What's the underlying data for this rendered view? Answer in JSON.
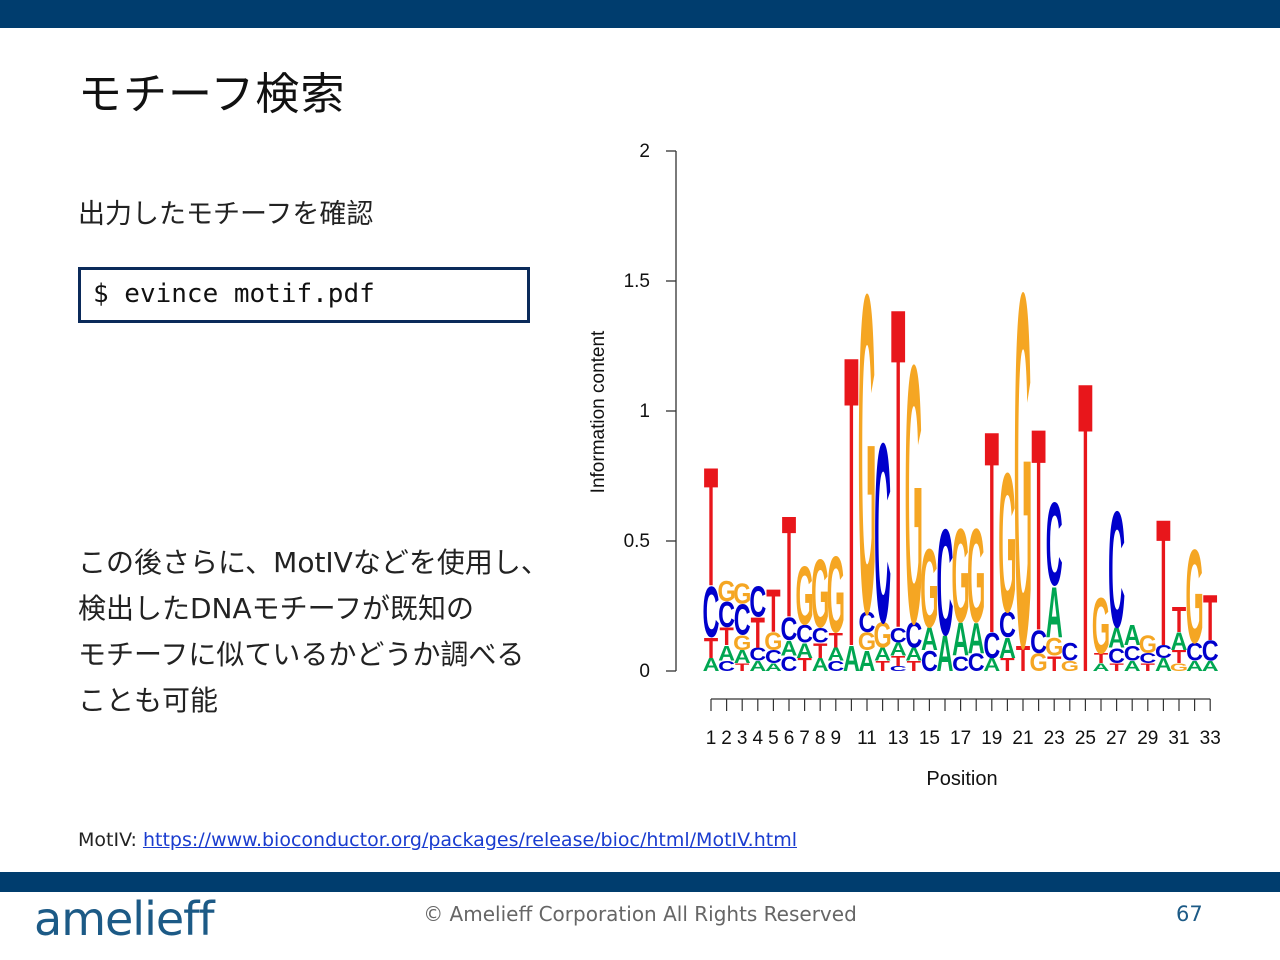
{
  "slide": {
    "title": "モチーフ検索",
    "subtitle": "出力したモチーフを確認",
    "command": "$ evince motif.pdf",
    "paragraph": [
      "この後さらに、MotIVなどを使用し、",
      "検出したDNAモチーフが既知の",
      "モチーフに似ているかどうか調べる",
      "ことも可能"
    ],
    "reference_label": "MotIV: ",
    "reference_url": "https://www.bioconductor.org/packages/release/bioc/html/MotIV.html"
  },
  "footer": {
    "logo": "amelieff",
    "copyright": "© Amelieff Corporation All Rights Reserved",
    "page": "67"
  },
  "colors": {
    "bar": "#003d6e",
    "A": "#00a651",
    "C": "#0000cc",
    "G": "#f5a623",
    "T": "#e8161b"
  },
  "chart_data": {
    "type": "sequence-logo",
    "xlabel": "Position",
    "ylabel": "Information content",
    "ylim": [
      0,
      2
    ],
    "yticks": [
      0,
      0.5,
      1,
      1.5,
      2
    ],
    "ytick_labels": [
      "0",
      "0.5",
      "1",
      "1.5",
      "2"
    ],
    "xtick_labels": [
      "1",
      "2",
      "3",
      "4",
      "5",
      "6",
      "7",
      "8",
      "9",
      "",
      "11",
      "",
      "13",
      "",
      "15",
      "",
      "17",
      "",
      "19",
      "",
      "21",
      "",
      "23",
      "",
      "25",
      "",
      "27",
      "",
      "29",
      "",
      "31",
      "",
      "33"
    ],
    "positions": [
      {
        "pos": 1,
        "letters": [
          {
            "b": "A",
            "v": 0.05
          },
          {
            "b": "T",
            "v": 0.08
          },
          {
            "b": "C",
            "v": 0.2
          },
          {
            "b": "T",
            "v": 0.47
          }
        ]
      },
      {
        "pos": 2,
        "letters": [
          {
            "b": "C",
            "v": 0.04
          },
          {
            "b": "A",
            "v": 0.06
          },
          {
            "b": "T",
            "v": 0.07
          },
          {
            "b": "C",
            "v": 0.1
          },
          {
            "b": "G",
            "v": 0.08
          }
        ]
      },
      {
        "pos": 3,
        "letters": [
          {
            "b": "T",
            "v": 0.03
          },
          {
            "b": "A",
            "v": 0.05
          },
          {
            "b": "G",
            "v": 0.06
          },
          {
            "b": "C",
            "v": 0.12
          },
          {
            "b": "G",
            "v": 0.08
          }
        ]
      },
      {
        "pos": 4,
        "letters": [
          {
            "b": "A",
            "v": 0.04
          },
          {
            "b": "C",
            "v": 0.05
          },
          {
            "b": "T",
            "v": 0.12
          },
          {
            "b": "C",
            "v": 0.12
          }
        ]
      },
      {
        "pos": 5,
        "letters": [
          {
            "b": "A",
            "v": 0.03
          },
          {
            "b": "C",
            "v": 0.05
          },
          {
            "b": "G",
            "v": 0.07
          },
          {
            "b": "T",
            "v": 0.17
          }
        ]
      },
      {
        "pos": 6,
        "letters": [
          {
            "b": "C",
            "v": 0.06
          },
          {
            "b": "A",
            "v": 0.06
          },
          {
            "b": "C",
            "v": 0.09
          },
          {
            "b": "T",
            "v": 0.4
          }
        ]
      },
      {
        "pos": 7,
        "letters": [
          {
            "b": "T",
            "v": 0.05
          },
          {
            "b": "A",
            "v": 0.06
          },
          {
            "b": "C",
            "v": 0.07
          },
          {
            "b": "G",
            "v": 0.23
          }
        ]
      },
      {
        "pos": 8,
        "letters": [
          {
            "b": "A",
            "v": 0.05
          },
          {
            "b": "T",
            "v": 0.06
          },
          {
            "b": "C",
            "v": 0.06
          },
          {
            "b": "G",
            "v": 0.27
          }
        ]
      },
      {
        "pos": 9,
        "letters": [
          {
            "b": "C",
            "v": 0.04
          },
          {
            "b": "A",
            "v": 0.05
          },
          {
            "b": "T",
            "v": 0.06
          },
          {
            "b": "G",
            "v": 0.3
          }
        ]
      },
      {
        "pos": 10,
        "letters": [
          {
            "b": "A",
            "v": 0.1
          },
          {
            "b": "T",
            "v": 1.15
          }
        ]
      },
      {
        "pos": 11,
        "letters": [
          {
            "b": "A",
            "v": 0.08
          },
          {
            "b": "G",
            "v": 0.07
          },
          {
            "b": "C",
            "v": 0.08
          },
          {
            "b": "G",
            "v": 1.26
          }
        ]
      },
      {
        "pos": 12,
        "letters": [
          {
            "b": "T",
            "v": 0.04
          },
          {
            "b": "A",
            "v": 0.05
          },
          {
            "b": "G",
            "v": 0.1
          },
          {
            "b": "C",
            "v": 0.71
          }
        ]
      },
      {
        "pos": 13,
        "letters": [
          {
            "b": "C",
            "v": 0.02
          },
          {
            "b": "T",
            "v": 0.04
          },
          {
            "b": "A",
            "v": 0.05
          },
          {
            "b": "C",
            "v": 0.06
          },
          {
            "b": "T",
            "v": 1.27
          }
        ]
      },
      {
        "pos": 14,
        "letters": [
          {
            "b": "T",
            "v": 0.04
          },
          {
            "b": "A",
            "v": 0.05
          },
          {
            "b": "C",
            "v": 0.1
          },
          {
            "b": "G",
            "v": 1.02
          }
        ]
      },
      {
        "pos": 15,
        "letters": [
          {
            "b": "C",
            "v": 0.08
          },
          {
            "b": "A",
            "v": 0.09
          },
          {
            "b": "G",
            "v": 0.31
          }
        ]
      },
      {
        "pos": 16,
        "letters": [
          {
            "b": "A",
            "v": 0.14
          },
          {
            "b": "C",
            "v": 0.42
          }
        ]
      },
      {
        "pos": 17,
        "letters": [
          {
            "b": "C",
            "v": 0.06
          },
          {
            "b": "A",
            "v": 0.13
          },
          {
            "b": "G",
            "v": 0.37
          }
        ]
      },
      {
        "pos": 18,
        "letters": [
          {
            "b": "C",
            "v": 0.07
          },
          {
            "b": "A",
            "v": 0.12
          },
          {
            "b": "G",
            "v": 0.37
          }
        ]
      },
      {
        "pos": 19,
        "letters": [
          {
            "b": "A",
            "v": 0.05
          },
          {
            "b": "C",
            "v": 0.1
          },
          {
            "b": "T",
            "v": 0.8
          }
        ]
      },
      {
        "pos": 20,
        "letters": [
          {
            "b": "T",
            "v": 0.05
          },
          {
            "b": "A",
            "v": 0.08
          },
          {
            "b": "C",
            "v": 0.1
          },
          {
            "b": "G",
            "v": 0.55
          }
        ]
      },
      {
        "pos": 21,
        "letters": [
          {
            "b": "T",
            "v": 0.1
          },
          {
            "b": "G",
            "v": 1.4
          }
        ]
      },
      {
        "pos": 22,
        "letters": [
          {
            "b": "G",
            "v": 0.07
          },
          {
            "b": "C",
            "v": 0.09
          },
          {
            "b": "T",
            "v": 0.8
          }
        ]
      },
      {
        "pos": 23,
        "letters": [
          {
            "b": "T",
            "v": 0.06
          },
          {
            "b": "G",
            "v": 0.07
          },
          {
            "b": "A",
            "v": 0.2
          },
          {
            "b": "C",
            "v": 0.33
          }
        ]
      },
      {
        "pos": 24,
        "letters": [
          {
            "b": "G",
            "v": 0.04
          },
          {
            "b": "C",
            "v": 0.07
          }
        ]
      },
      {
        "pos": 25,
        "letters": [
          {
            "b": "T",
            "v": 1.15
          }
        ]
      },
      {
        "pos": 26,
        "letters": [
          {
            "b": "A",
            "v": 0.03
          },
          {
            "b": "T",
            "v": 0.04
          },
          {
            "b": "G",
            "v": 0.22
          }
        ]
      },
      {
        "pos": 27,
        "letters": [
          {
            "b": "T",
            "v": 0.03
          },
          {
            "b": "C",
            "v": 0.06
          },
          {
            "b": "A",
            "v": 0.08
          },
          {
            "b": "C",
            "v": 0.46
          }
        ]
      },
      {
        "pos": 28,
        "letters": [
          {
            "b": "A",
            "v": 0.04
          },
          {
            "b": "C",
            "v": 0.06
          },
          {
            "b": "A",
            "v": 0.08
          }
        ]
      },
      {
        "pos": 29,
        "letters": [
          {
            "b": "T",
            "v": 0.03
          },
          {
            "b": "C",
            "v": 0.04
          },
          {
            "b": "G",
            "v": 0.07
          }
        ]
      },
      {
        "pos": 30,
        "letters": [
          {
            "b": "A",
            "v": 0.05
          },
          {
            "b": "C",
            "v": 0.05
          },
          {
            "b": "T",
            "v": 0.5
          }
        ]
      },
      {
        "pos": 31,
        "letters": [
          {
            "b": "G",
            "v": 0.03
          },
          {
            "b": "T",
            "v": 0.05
          },
          {
            "b": "A",
            "v": 0.07
          },
          {
            "b": "T",
            "v": 0.1
          }
        ]
      },
      {
        "pos": 32,
        "letters": [
          {
            "b": "A",
            "v": 0.04
          },
          {
            "b": "C",
            "v": 0.07
          },
          {
            "b": "G",
            "v": 0.37
          }
        ]
      },
      {
        "pos": 33,
        "letters": [
          {
            "b": "A",
            "v": 0.04
          },
          {
            "b": "C",
            "v": 0.08
          },
          {
            "b": "T",
            "v": 0.18
          }
        ]
      }
    ]
  }
}
